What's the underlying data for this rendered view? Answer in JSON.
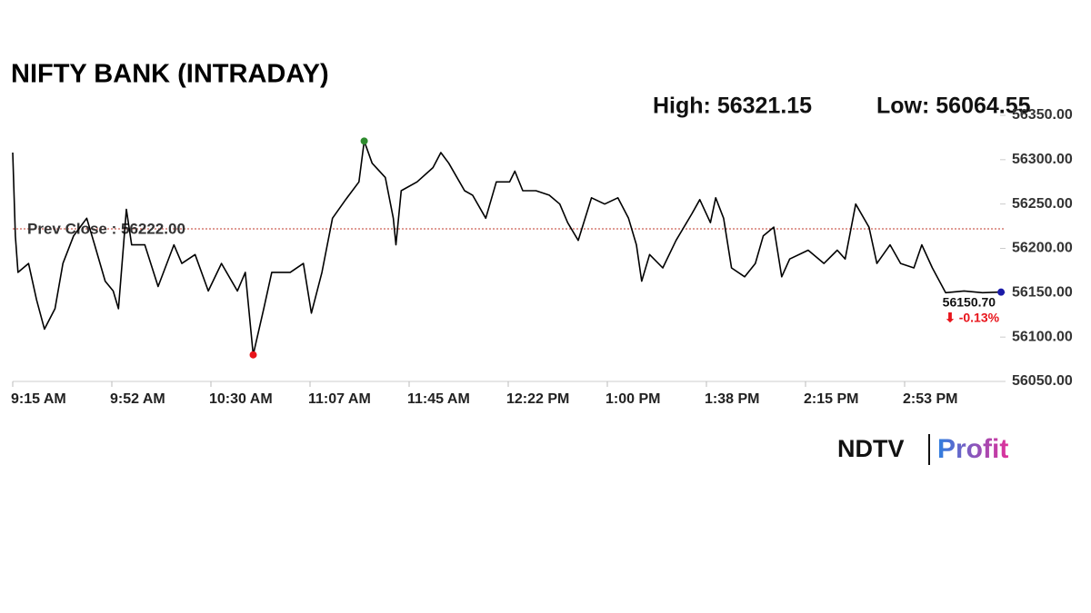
{
  "chart_data": {
    "type": "line",
    "title": "NIFTY BANK (INTRADAY)",
    "high_label": "High: 56321.15",
    "low_label": "Low: 56064.55",
    "prev_close": {
      "value": 56222,
      "label": "Prev Close : 56222.00"
    },
    "last_label": "56150.70",
    "change_label": "⬇ -0.13%",
    "series": [
      {
        "name": "NIFTY BANK",
        "color": "#000000",
        "x": [
          555,
          556,
          557,
          561,
          564,
          567,
          571,
          574,
          578,
          583,
          586,
          590,
          593,
          595,
          598,
          600,
          605,
          610,
          616,
          619,
          624,
          629,
          634,
          640,
          643,
          646,
          650,
          653,
          660,
          665,
          668,
          672,
          676,
          681,
          686,
          688,
          691,
          696,
          699,
          700,
          702,
          708,
          714,
          717,
          720,
          726,
          729,
          734,
          738,
          743,
          745,
          748,
          753,
          758,
          762,
          765,
          769,
          774,
          779,
          784,
          788,
          791,
          793,
          796,
          801,
          806,
          812,
          815,
          819,
          821,
          824,
          827,
          832,
          836,
          839,
          843,
          846,
          849,
          856,
          862,
          867,
          870,
          874,
          879,
          882,
          887,
          891,
          896,
          899,
          903,
          908,
          915,
          922,
          929
        ],
        "values": [
          56308,
          56214,
          56173,
          56183,
          56142,
          56109,
          56132,
          56183,
          56214,
          56234,
          56204,
          56163,
          56152,
          56132,
          56244,
          56204,
          56204,
          56157,
          56204,
          56183,
          56193,
          56152,
          56183,
          56152,
          56173,
          56080,
          56132,
          56173,
          56173,
          56183,
          56127,
          56173,
          56234,
          56255,
          56275,
          56321,
          56296,
          56280,
          56234,
          56204,
          56265,
          56275,
          56291,
          56308,
          56296,
          56265,
          56260,
          56234,
          56275,
          56275,
          56287,
          56265,
          56265,
          56260,
          56250,
          56229,
          56209,
          56257,
          56250,
          56257,
          56234,
          56204,
          56163,
          56193,
          56178,
          56209,
          56239,
          56255,
          56229,
          56257,
          56234,
          56178,
          56168,
          56183,
          56214,
          56224,
          56168,
          56188,
          56198,
          56183,
          56198,
          56188,
          56250,
          56224,
          56183,
          56204,
          56183,
          56178,
          56204,
          56178,
          56150,
          56152,
          56150,
          56150.7
        ]
      }
    ],
    "marker_colors": {
      "high": "#2e8b2e",
      "low": "#e8141b",
      "last": "#1a1aa8"
    },
    "xlim": [
      555,
      930
    ],
    "xticks": [
      {
        "value": 555,
        "label": "9:15 AM"
      },
      {
        "value": 592.5,
        "label": "9:52 AM"
      },
      {
        "value": 630,
        "label": "10:30 AM"
      },
      {
        "value": 667.5,
        "label": "11:07 AM"
      },
      {
        "value": 705,
        "label": "11:45 AM"
      },
      {
        "value": 742.5,
        "label": "12:22 PM"
      },
      {
        "value": 780,
        "label": "1:00 PM"
      },
      {
        "value": 817.5,
        "label": "1:38 PM"
      },
      {
        "value": 855,
        "label": "2:15 PM"
      },
      {
        "value": 892.5,
        "label": "2:53 PM"
      }
    ],
    "ylim": [
      56050,
      56350
    ],
    "yticks": [
      {
        "value": 56050,
        "label": "56050.00"
      },
      {
        "value": 56100,
        "label": "56100.00"
      },
      {
        "value": 56150,
        "label": "56150.00"
      },
      {
        "value": 56200,
        "label": "56200.00"
      },
      {
        "value": 56250,
        "label": "56250.00"
      },
      {
        "value": 56300,
        "label": "56300.00"
      },
      {
        "value": 56350,
        "label": "56350.00"
      }
    ],
    "grid": false
  },
  "logo": {
    "name": "NDTV",
    "product": "Profit"
  }
}
